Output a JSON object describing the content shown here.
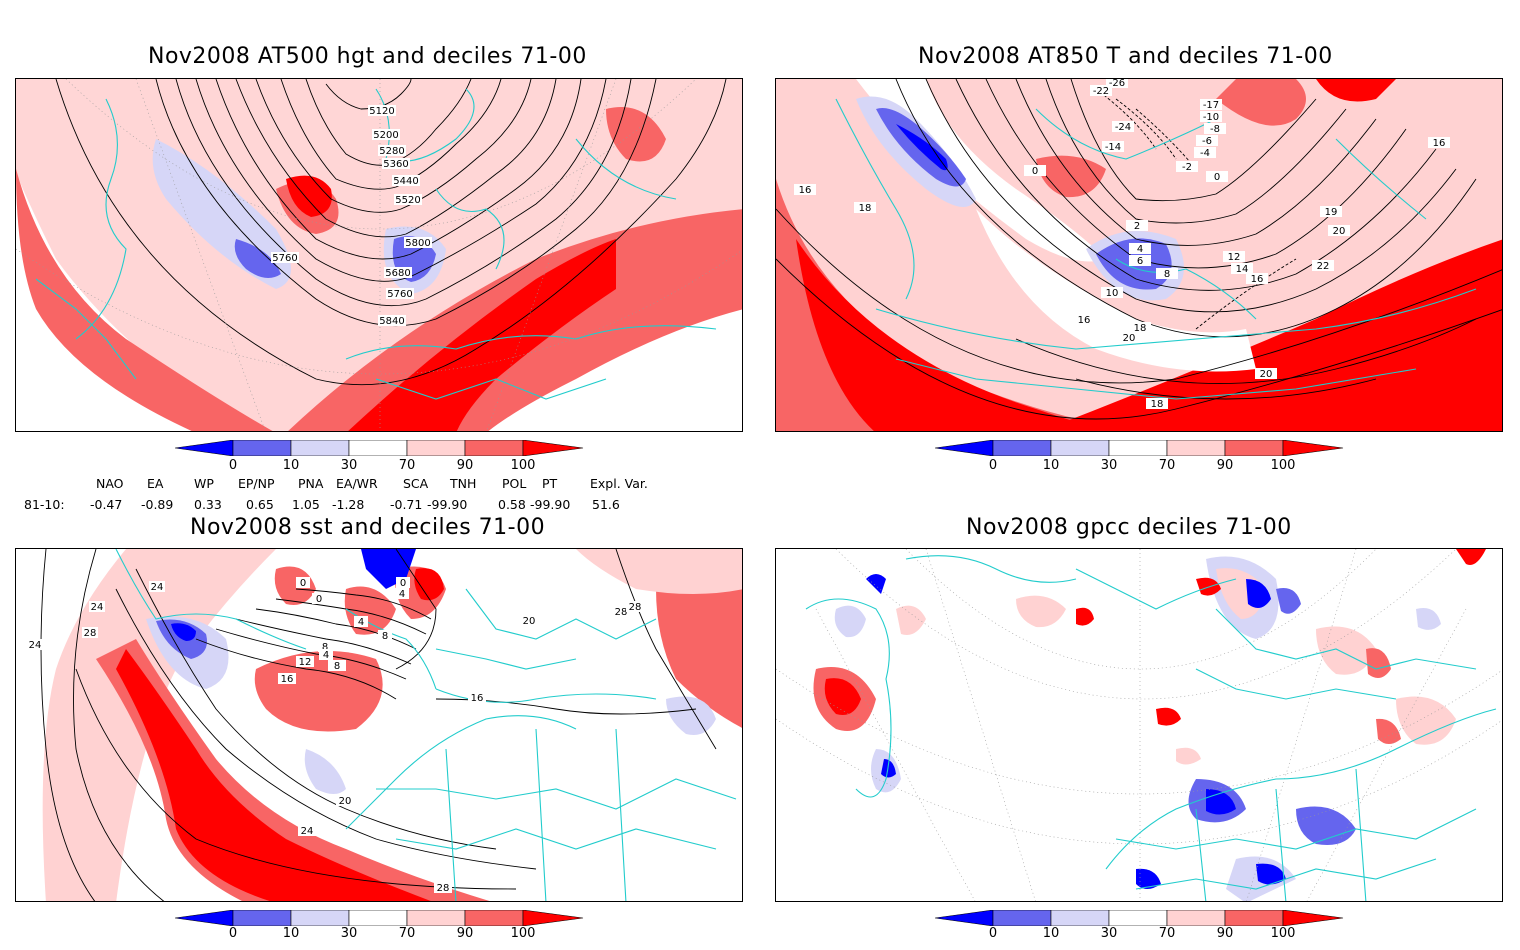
{
  "panels": [
    {
      "title": "Nov2008 AT500 hgt and deciles 71-00",
      "contour_labels": [
        "5120",
        "5200",
        "5280",
        "5360",
        "5440",
        "5520",
        "5760",
        "5800",
        "5680",
        "5760",
        "5840"
      ]
    },
    {
      "title": "Nov2008 AT850 T and deciles 71-00",
      "contour_labels": [
        "-26",
        "-22",
        "-17",
        "-10",
        "-8",
        "-24",
        "-6",
        "-14",
        "-4",
        "-2",
        "0",
        "0",
        "16",
        "18",
        "16",
        "2",
        "4",
        "6",
        "8",
        "10",
        "12",
        "14",
        "16",
        "19",
        "20",
        "22",
        "16",
        "18",
        "20",
        "20",
        "18"
      ]
    },
    {
      "title": "Nov2008 sst and deciles 71-00",
      "contour_labels": [
        "24",
        "24",
        "28",
        "24",
        "0",
        "0",
        "0",
        "4",
        "4",
        "8",
        "8",
        "4",
        "8",
        "12",
        "16",
        "20",
        "16",
        "20",
        "24",
        "28",
        "28",
        "28"
      ]
    },
    {
      "title": "Nov2008 gpcc deciles 71-00",
      "contour_labels": []
    }
  ],
  "colorbar": {
    "labels": [
      "0",
      "10",
      "30",
      "70",
      "90",
      "100"
    ],
    "colors": [
      "#0000ff",
      "#6565ee",
      "#d6d6f7",
      "#ffffff",
      "#ffd2d2",
      "#f86565",
      "#ff0000"
    ]
  },
  "indices": {
    "headers": [
      "NAO",
      "EA",
      "WP",
      "EP/NP",
      "PNA",
      "EA/WR",
      "SCA",
      "TNH",
      "POL",
      "PT",
      "Expl. Var."
    ],
    "row_label": "81-10:",
    "values": [
      "-0.47",
      "-0.89",
      "0.33",
      "0.65",
      "1.05",
      "-1.28",
      "-0.71",
      "-99.90",
      "0.58",
      "-99.90",
      "51.6"
    ]
  }
}
